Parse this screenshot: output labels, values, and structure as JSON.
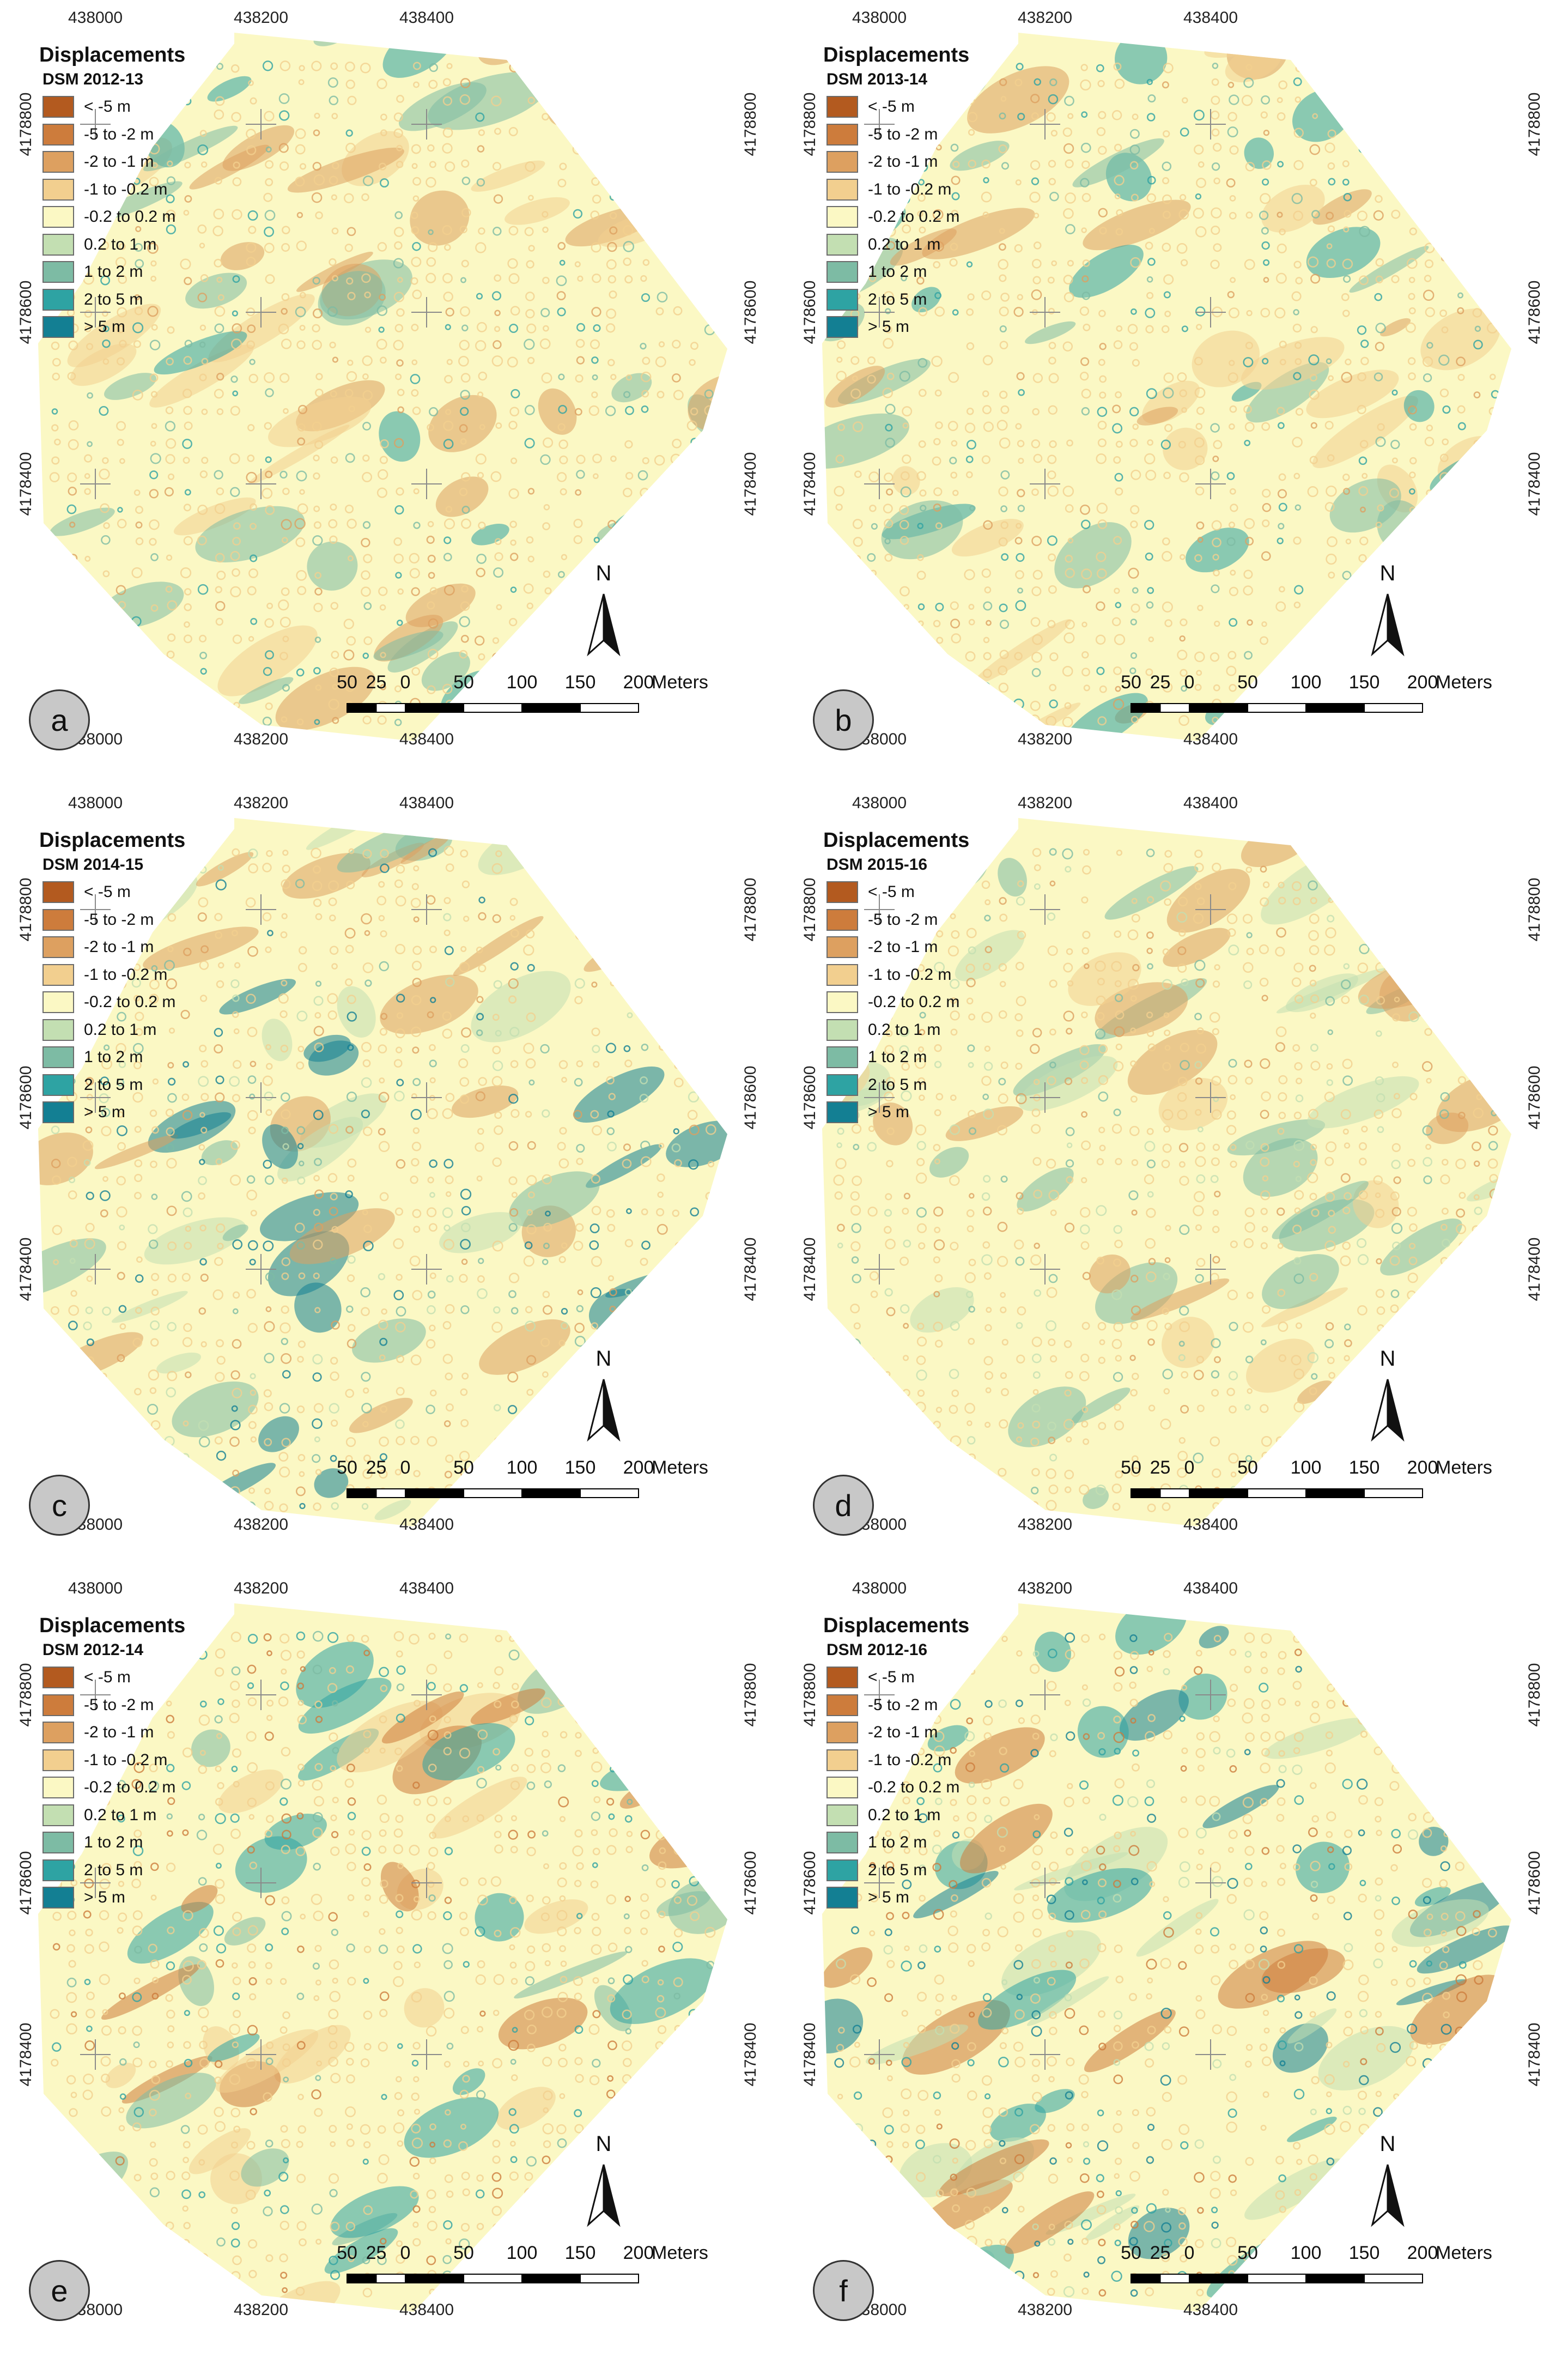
{
  "legend": {
    "title": "Displacements",
    "classes": [
      {
        "label": "< -5 m",
        "color": "#b35a1f"
      },
      {
        "label": "-5 to -2 m",
        "color": "#cd7c3c"
      },
      {
        "label": "-2 to -1 m",
        "color": "#dda060"
      },
      {
        "label": "-1 to -0.2 m",
        "color": "#f2cf8f"
      },
      {
        "label": "-0.2 to 0.2 m",
        "color": "#fbf8c4"
      },
      {
        "label": "0.2 to 1 m",
        "color": "#c3dfb2"
      },
      {
        "label": "1 to 2 m",
        "color": "#7dbba4"
      },
      {
        "label": "2 to 5 m",
        "color": "#2ea3a3"
      },
      {
        "label": "> 5 m",
        "color": "#137f93"
      }
    ]
  },
  "axes": {
    "x_ticks": [
      "438000",
      "438200",
      "438400"
    ],
    "y_ticks": [
      "4178800",
      "4178600",
      "4178400"
    ]
  },
  "scale_bar": {
    "labels": [
      "50",
      "25",
      "0",
      "50",
      "100",
      "150",
      "200"
    ],
    "unit": "Meters"
  },
  "north_arrow": {
    "label": "N"
  },
  "panels": [
    {
      "letter": "a",
      "dsm": "DSM 2012-13",
      "dominant": [
        "#f2cf8f",
        "#7dbba4",
        "#dda060",
        "#2ea3a3"
      ]
    },
    {
      "letter": "b",
      "dsm": "DSM 2013-14",
      "dominant": [
        "#f2cf8f",
        "#2ea3a3",
        "#dda060",
        "#7dbba4"
      ]
    },
    {
      "letter": "c",
      "dsm": "DSM 2014-15",
      "dominant": [
        "#137f93",
        "#7dbba4",
        "#dda060",
        "#c3dfb2"
      ]
    },
    {
      "letter": "d",
      "dsm": "DSM 2015-16",
      "dominant": [
        "#c3dfb2",
        "#dda060",
        "#f2cf8f",
        "#7dbba4"
      ]
    },
    {
      "letter": "e",
      "dsm": "DSM 2012-14",
      "dominant": [
        "#2ea3a3",
        "#cd7c3c",
        "#f2cf8f",
        "#7dbba4"
      ]
    },
    {
      "letter": "f",
      "dsm": "DSM 2012-16",
      "dominant": [
        "#137f93",
        "#cd7c3c",
        "#2ea3a3",
        "#c3dfb2"
      ]
    }
  ]
}
